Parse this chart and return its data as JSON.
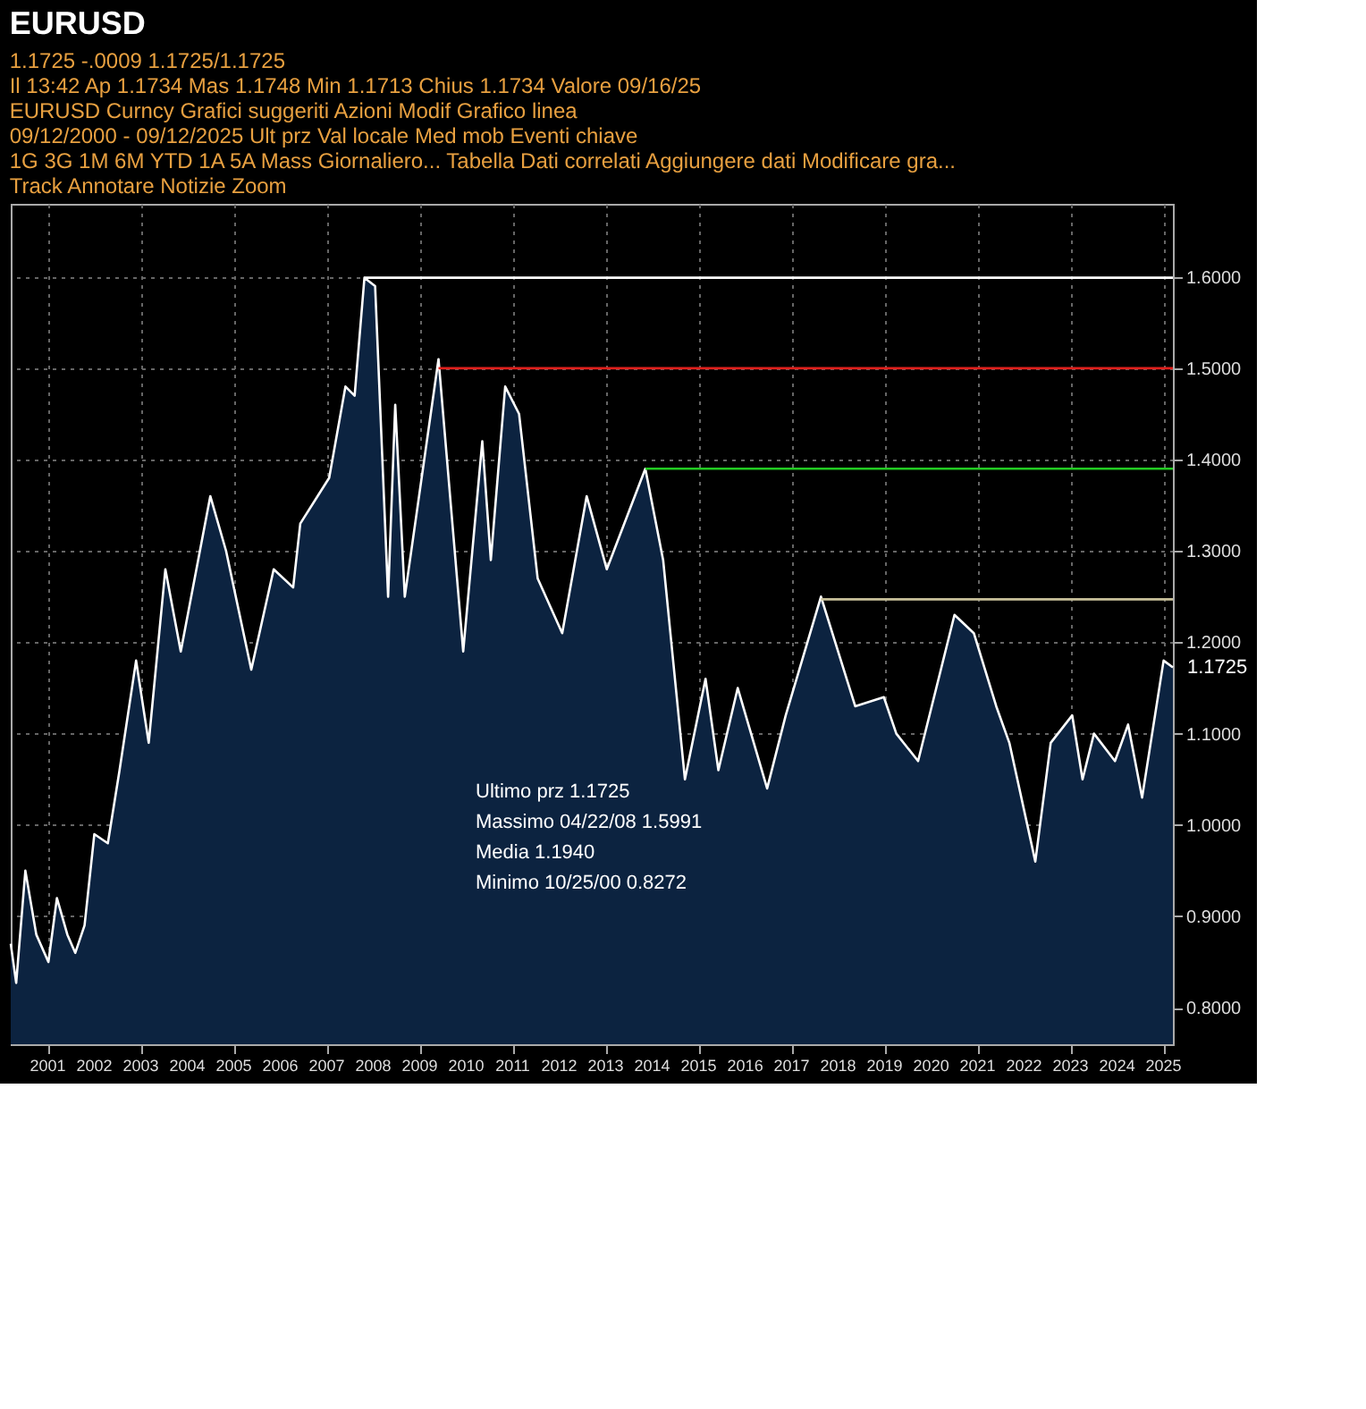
{
  "chart_data": {
    "type": "area",
    "title": "EURUSD",
    "subtitle": "1.1725   -.0009   1.1725/1.1725\nIl 13:42  Ap 1.1734   Mas 1.1748   Min 1.1713   Chius 1.1734   Valore 09/16/25\nEURUSD Curncy   Grafici suggeriti   Azioni   Modif   Grafico linea\n09/12/2000 - 09/12/2025   Ult prz   Val locale   Med mob   Eventi chiave\n1G 3G 1M 6M YTD 1A 5A Mass Giornaliero...  Tabella   Dati correlati   Aggiungere dati   Modificare gra...\nTrack   Annotare   Notizie   Zoom",
    "x": [
      "2000-09-12",
      "2000-10-25",
      "2001-01-05",
      "2001-04-01",
      "2001-07-05",
      "2001-09-10",
      "2001-12-01",
      "2002-02-01",
      "2002-04-15",
      "2002-07-01",
      "2002-10-15",
      "2003-01-15",
      "2003-05-25",
      "2003-09-01",
      "2004-01-10",
      "2004-05-10",
      "2004-12-28",
      "2005-05-01",
      "2005-11-15",
      "2006-05-10",
      "2006-10-10",
      "2006-12-05",
      "2007-04-20",
      "2007-07-20",
      "2007-11-25",
      "2008-02-05",
      "2008-04-22",
      "2008-07-15",
      "2008-10-25",
      "2008-12-20",
      "2009-03-05",
      "2009-11-25",
      "2010-06-07",
      "2010-11-04",
      "2011-01-10",
      "2011-05-03",
      "2011-08-20",
      "2012-01-13",
      "2012-07-24",
      "2013-02-01",
      "2013-07-09",
      "2014-05-08",
      "2014-09-25",
      "2015-03-15",
      "2015-08-24",
      "2015-12-03",
      "2016-05-03",
      "2016-12-20",
      "2017-05-15",
      "2018-02-16",
      "2018-11-12",
      "2019-06-25",
      "2019-10-01",
      "2020-03-20",
      "2020-12-31",
      "2021-06-01",
      "2021-11-24",
      "2022-03-07",
      "2022-09-27",
      "2023-01-26",
      "2023-07-14",
      "2023-10-03",
      "2024-01-01",
      "2024-06-14",
      "2024-09-25",
      "2025-01-13",
      "2025-07-01",
      "2025-09-12"
    ],
    "series": [
      {
        "color": "#0c2340",
        "values": [
          0.87,
          0.8272,
          0.95,
          0.88,
          0.85,
          0.92,
          0.88,
          0.86,
          0.89,
          0.99,
          0.98,
          1.06,
          1.18,
          1.09,
          1.28,
          1.19,
          1.36,
          1.3,
          1.17,
          1.28,
          1.26,
          1.33,
          1.36,
          1.38,
          1.48,
          1.47,
          1.5991,
          1.59,
          1.25,
          1.46,
          1.25,
          1.51,
          1.19,
          1.42,
          1.29,
          1.48,
          1.45,
          1.27,
          1.21,
          1.36,
          1.28,
          1.39,
          1.29,
          1.05,
          1.16,
          1.06,
          1.15,
          1.04,
          1.12,
          1.25,
          1.13,
          1.14,
          1.1,
          1.07,
          1.23,
          1.21,
          1.13,
          1.09,
          0.96,
          1.09,
          1.12,
          1.05,
          1.1,
          1.07,
          1.11,
          1.03,
          1.18,
          1.1725
        ]
      },
      {
        "type": "line",
        "color": "#ffffff",
        "x": [
          "2008-04-22",
          "2025-09-12"
        ],
        "values": [
          1.5991,
          1.5991
        ]
      },
      {
        "type": "line",
        "color": "#e0201c",
        "x": [
          "2009-11-25",
          "2025-09-12"
        ],
        "values": [
          1.5,
          1.5
        ]
      },
      {
        "type": "line",
        "color": "#22cc22",
        "x": [
          "2014-05-08",
          "2025-09-12"
        ],
        "values": [
          1.39,
          1.39
        ]
      },
      {
        "type": "line",
        "color": "#c8c09a",
        "x": [
          "2018-02-16",
          "2025-09-12"
        ],
        "values": [
          1.247,
          1.247
        ]
      }
    ],
    "xlim": [
      "2000-09-12",
      "2025-09-12"
    ],
    "xticks": [
      {
        "value": "2001-07-01",
        "label": "2001"
      },
      {
        "value": "2002-07-01",
        "label": "2002"
      },
      {
        "value": "2003-07-01",
        "label": "2003"
      },
      {
        "value": "2004-07-01",
        "label": "2004"
      },
      {
        "value": "2005-07-01",
        "label": "2005"
      },
      {
        "value": "2006-07-01",
        "label": "2006"
      },
      {
        "value": "2007-07-01",
        "label": "2007"
      },
      {
        "value": "2008-07-01",
        "label": "2008"
      },
      {
        "value": "2009-07-01",
        "label": "2009"
      },
      {
        "value": "2010-07-01",
        "label": "2010"
      },
      {
        "value": "2011-07-01",
        "label": "2011"
      },
      {
        "value": "2012-07-01",
        "label": "2012"
      },
      {
        "value": "2013-07-01",
        "label": "2013"
      },
      {
        "value": "2014-07-01",
        "label": "2014"
      },
      {
        "value": "2015-07-01",
        "label": "2015"
      },
      {
        "value": "2016-07-01",
        "label": "2016"
      },
      {
        "value": "2017-07-01",
        "label": "2017"
      },
      {
        "value": "2018-07-01",
        "label": "2018"
      },
      {
        "value": "2019-07-01",
        "label": "2019"
      },
      {
        "value": "2020-07-01",
        "label": "2020"
      },
      {
        "value": "2021-07-01",
        "label": "2021"
      },
      {
        "value": "2022-07-01",
        "label": "2022"
      },
      {
        "value": "2023-07-01",
        "label": "2023"
      },
      {
        "value": "2024-07-01",
        "label": "2024"
      },
      {
        "value": "2025-07-01",
        "label": "2025"
      }
    ],
    "ylim": [
      0.76,
      1.68
    ],
    "yticks": [
      {
        "value": 0.8,
        "label": "0.8000"
      },
      {
        "value": 0.9,
        "label": "0.9000"
      },
      {
        "value": 1.0,
        "label": "1.0000"
      },
      {
        "value": 1.1,
        "label": "1.1000"
      },
      {
        "value": 1.2,
        "label": "1.2000"
      },
      {
        "value": 1.3,
        "label": "1.3000"
      },
      {
        "value": 1.4,
        "label": "1.4000"
      },
      {
        "value": 1.5,
        "label": "1.5000"
      },
      {
        "value": 1.6,
        "label": "1.6000"
      }
    ],
    "grid": true,
    "annotations": [
      {
        "text": "1.1725",
        "x": "2025-09-12",
        "y": 1.1725
      },
      "Ultimo prz 1.1725",
      "Massimo 04/22/08 1.5991",
      "Media 1.1940",
      "Minimo 10/25/00 0.8272"
    ]
  }
}
